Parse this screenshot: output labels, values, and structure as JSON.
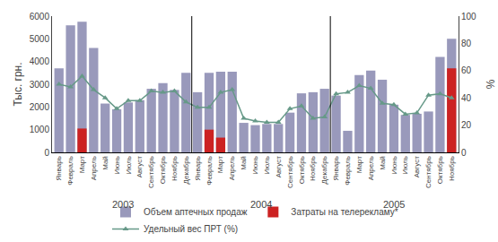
{
  "chart_data": {
    "type": "bar",
    "categories": [
      "Январь",
      "Февраль",
      "Март",
      "Апрель",
      "Май",
      "Июнь",
      "Июль",
      "Август",
      "Сентябрь",
      "Октябрь",
      "Ноябрь",
      "Декабрь",
      "Январь",
      "Февраль",
      "Март",
      "Апрель",
      "Май",
      "Июнь",
      "Июль",
      "Август",
      "Сентябрь",
      "Октябрь",
      "Ноябрь",
      "Декабрь",
      "Январь",
      "Февраль",
      "Март",
      "Апрель",
      "Май",
      "Июнь",
      "Июль",
      "Август",
      "Сентябрь",
      "Октябрь",
      "Ноябрь"
    ],
    "series": [
      {
        "name": "Объем аптечных продаж",
        "type": "bar",
        "color": "#9999bb",
        "values": [
          3700,
          5600,
          5750,
          4600,
          2150,
          1900,
          2200,
          2300,
          2800,
          3050,
          2750,
          3500,
          2650,
          3500,
          3550,
          3550,
          1300,
          1200,
          1250,
          1250,
          1750,
          2600,
          2650,
          2800,
          2500,
          950,
          3400,
          3600,
          3200,
          2100,
          1650,
          1700,
          1800,
          4200,
          5000
        ]
      },
      {
        "name": "Затраты на телерекламу*",
        "type": "bar",
        "color": "#cc2222",
        "values": [
          0,
          0,
          1050,
          0,
          0,
          0,
          0,
          0,
          0,
          0,
          0,
          0,
          0,
          1000,
          650,
          0,
          0,
          0,
          0,
          0,
          0,
          0,
          0,
          0,
          0,
          0,
          0,
          0,
          0,
          0,
          0,
          0,
          0,
          0,
          3700
        ]
      },
      {
        "name": "Удельный вес ПРТ (%)",
        "type": "line",
        "axis": "y2",
        "color": "#669988",
        "marker": "triangle-up",
        "values": [
          50,
          48,
          56,
          46,
          40,
          32,
          38,
          38,
          45,
          44,
          45,
          37,
          33,
          33,
          44,
          46,
          25,
          23,
          22,
          22,
          32,
          34,
          25,
          26,
          43,
          44,
          49,
          47,
          36,
          35,
          28,
          29,
          42,
          43,
          40
        ]
      }
    ],
    "annotations": [
      "2003",
      "2004",
      "2005"
    ],
    "ylabel": "Тыс. грн.",
    "y2label": "%",
    "ylim": [
      0,
      6000
    ],
    "yticks": [
      0,
      1000,
      2000,
      3000,
      4000,
      5000,
      6000
    ],
    "y2lim": [
      0,
      100
    ],
    "y2ticks": [
      0,
      20,
      40,
      60,
      80,
      100
    ],
    "grid": false,
    "legend": "bottom"
  }
}
